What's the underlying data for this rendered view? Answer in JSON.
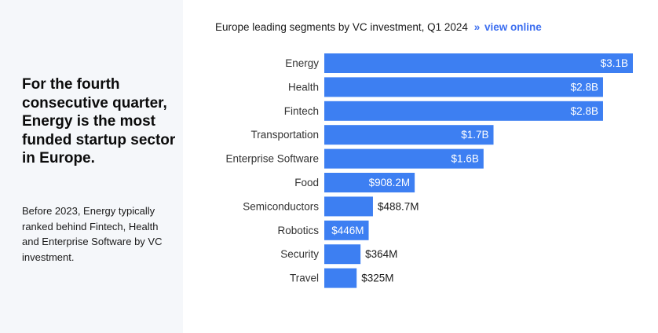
{
  "sidebar": {
    "headline": "For the fourth consecutive quarter, Energy is the most funded startup sector in Europe.",
    "body": "Before 2023, Energy typically ranked behind Fintech, Health and Enterprise Software by VC investment."
  },
  "header": {
    "chevron": "»",
    "link_label": "view online"
  },
  "colors": {
    "bar": "#3d7ff2",
    "link": "#3d6ff0",
    "panel": "#f5f7fa"
  },
  "chart_data": {
    "type": "bar",
    "orientation": "horizontal",
    "title": "Europe leading segments by VC investment, Q1 2024",
    "categories": [
      "Energy",
      "Health",
      "Fintech",
      "Transportation",
      "Enterprise Software",
      "Food",
      "Semiconductors",
      "Robotics",
      "Security",
      "Travel"
    ],
    "values": [
      3100,
      2800,
      2800,
      1700,
      1600,
      908.2,
      488.7,
      446,
      364,
      325
    ],
    "unit": "$M",
    "labels": [
      "$3.1B",
      "$2.8B",
      "$2.8B",
      "$1.7B",
      "$1.6B",
      "$908.2M",
      "$488.7M",
      "$446M",
      "$364M",
      "$325M"
    ],
    "xlim": [
      0,
      3100
    ],
    "grid": false,
    "legend": "none"
  }
}
